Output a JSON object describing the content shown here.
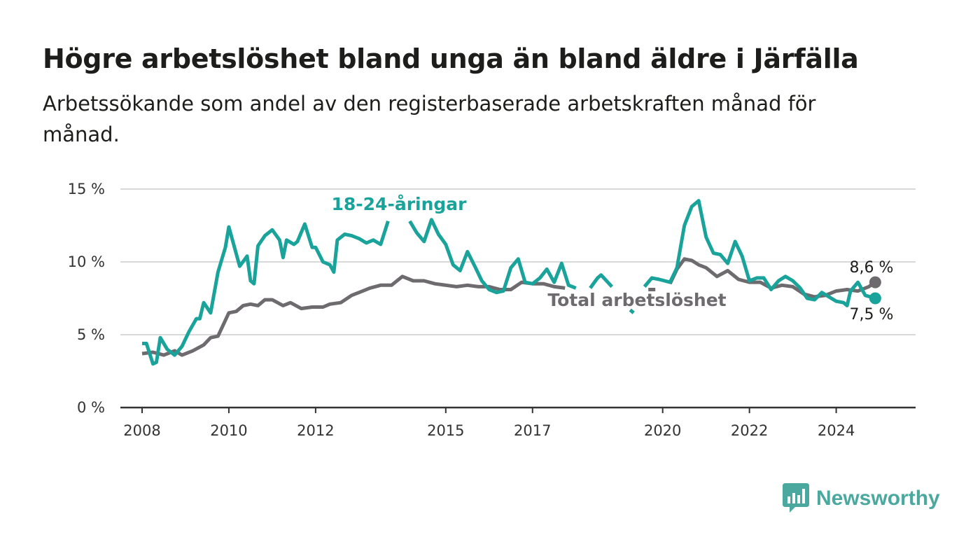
{
  "title": "Högre arbetslöshet bland unga än bland äldre i Järfälla",
  "subtitle": "Arbetssökande som andel av den registerbaserade arbetskraften månad för månad.",
  "brand": "Newsworthy",
  "colors": {
    "youth": "#1aa39a",
    "total": "#6e6b6f",
    "grid": "#d9d9d9",
    "axis": "#333333",
    "brand": "#4aa89e"
  },
  "chart_data": {
    "type": "line",
    "ylim": [
      0,
      15
    ],
    "xlim": [
      2007.5,
      2025.83
    ],
    "grid": true,
    "y_ticks": [
      {
        "value": 0,
        "label": "0 %"
      },
      {
        "value": 5,
        "label": "5 %"
      },
      {
        "value": 10,
        "label": "10 %"
      },
      {
        "value": 15,
        "label": "15 %"
      }
    ],
    "x_ticks": [
      {
        "value": 2008.0,
        "label": "2008"
      },
      {
        "value": 2010.0,
        "label": "2010"
      },
      {
        "value": 2012.0,
        "label": "2012"
      },
      {
        "value": 2015.0,
        "label": "2015"
      },
      {
        "value": 2017.0,
        "label": "2017"
      },
      {
        "value": 2020.0,
        "label": "2020"
      },
      {
        "value": 2022.0,
        "label": "2022"
      },
      {
        "value": 2024.0,
        "label": "2024"
      }
    ],
    "series": [
      {
        "name": "Total arbetslöshet",
        "end_label": "8,6 %",
        "points": [
          [
            2008.0,
            3.7
          ],
          [
            2008.25,
            3.8
          ],
          [
            2008.5,
            3.6
          ],
          [
            2008.75,
            3.9
          ],
          [
            2008.92,
            3.6
          ],
          [
            2009.17,
            3.9
          ],
          [
            2009.42,
            4.3
          ],
          [
            2009.58,
            4.8
          ],
          [
            2009.75,
            4.9
          ],
          [
            2010.0,
            6.5
          ],
          [
            2010.17,
            6.6
          ],
          [
            2010.33,
            7.0
          ],
          [
            2010.5,
            7.1
          ],
          [
            2010.67,
            7.0
          ],
          [
            2010.83,
            7.4
          ],
          [
            2011.0,
            7.4
          ],
          [
            2011.25,
            7.0
          ],
          [
            2011.42,
            7.2
          ],
          [
            2011.67,
            6.8
          ],
          [
            2011.92,
            6.9
          ],
          [
            2012.17,
            6.9
          ],
          [
            2012.33,
            7.1
          ],
          [
            2012.58,
            7.2
          ],
          [
            2012.83,
            7.7
          ],
          [
            2013.0,
            7.9
          ],
          [
            2013.25,
            8.2
          ],
          [
            2013.5,
            8.4
          ],
          [
            2013.75,
            8.4
          ],
          [
            2014.0,
            9.0
          ],
          [
            2014.25,
            8.7
          ],
          [
            2014.5,
            8.7
          ],
          [
            2014.75,
            8.5
          ],
          [
            2015.0,
            8.4
          ],
          [
            2015.25,
            8.3
          ],
          [
            2015.5,
            8.4
          ],
          [
            2015.75,
            8.3
          ],
          [
            2016.0,
            8.3
          ],
          [
            2016.25,
            8.1
          ],
          [
            2016.5,
            8.1
          ],
          [
            2016.75,
            8.6
          ],
          [
            2017.0,
            8.5
          ],
          [
            2017.25,
            8.5
          ],
          [
            2017.5,
            8.3
          ],
          [
            2017.75,
            8.2
          ],
          [
            2017.83,
            null
          ],
          [
            2019.67,
            8.1
          ],
          [
            2019.83,
            8.1
          ],
          [
            2019.92,
            null
          ],
          [
            2020.17,
            8.5
          ],
          [
            2020.33,
            9.5
          ],
          [
            2020.5,
            10.2
          ],
          [
            2020.67,
            10.1
          ],
          [
            2020.83,
            9.8
          ],
          [
            2021.0,
            9.6
          ],
          [
            2021.25,
            9.0
          ],
          [
            2021.5,
            9.4
          ],
          [
            2021.75,
            8.8
          ],
          [
            2022.0,
            8.6
          ],
          [
            2022.25,
            8.6
          ],
          [
            2022.5,
            8.2
          ],
          [
            2022.75,
            8.4
          ],
          [
            2023.0,
            8.3
          ],
          [
            2023.25,
            7.8
          ],
          [
            2023.5,
            7.6
          ],
          [
            2023.75,
            7.7
          ],
          [
            2024.0,
            8.0
          ],
          [
            2024.25,
            8.1
          ],
          [
            2024.5,
            8.0
          ],
          [
            2024.75,
            8.3
          ],
          [
            2024.9,
            8.6
          ]
        ]
      },
      {
        "name": "18-24-åringar",
        "end_label": "7,5 %",
        "points": [
          [
            2008.0,
            4.4
          ],
          [
            2008.1,
            4.4
          ],
          [
            2008.25,
            3.0
          ],
          [
            2008.33,
            3.1
          ],
          [
            2008.42,
            4.8
          ],
          [
            2008.58,
            4.0
          ],
          [
            2008.75,
            3.6
          ],
          [
            2008.92,
            4.2
          ],
          [
            2009.08,
            5.2
          ],
          [
            2009.25,
            6.1
          ],
          [
            2009.33,
            6.1
          ],
          [
            2009.42,
            7.2
          ],
          [
            2009.58,
            6.5
          ],
          [
            2009.75,
            9.3
          ],
          [
            2009.92,
            11.0
          ],
          [
            2010.0,
            12.4
          ],
          [
            2010.25,
            9.7
          ],
          [
            2010.42,
            10.4
          ],
          [
            2010.5,
            8.7
          ],
          [
            2010.58,
            8.5
          ],
          [
            2010.67,
            11.1
          ],
          [
            2010.83,
            11.8
          ],
          [
            2011.0,
            12.2
          ],
          [
            2011.17,
            11.5
          ],
          [
            2011.25,
            10.3
          ],
          [
            2011.33,
            11.5
          ],
          [
            2011.5,
            11.2
          ],
          [
            2011.58,
            11.4
          ],
          [
            2011.75,
            12.6
          ],
          [
            2011.92,
            11.0
          ],
          [
            2012.0,
            11.0
          ],
          [
            2012.17,
            10.0
          ],
          [
            2012.33,
            9.8
          ],
          [
            2012.42,
            9.3
          ],
          [
            2012.5,
            11.5
          ],
          [
            2012.67,
            11.9
          ],
          [
            2012.83,
            11.8
          ],
          [
            2013.0,
            11.6
          ],
          [
            2013.17,
            11.3
          ],
          [
            2013.33,
            11.5
          ],
          [
            2013.5,
            11.2
          ],
          [
            2013.67,
            12.8
          ],
          [
            2013.83,
            null
          ],
          [
            2014.17,
            12.8
          ],
          [
            2014.33,
            12.0
          ],
          [
            2014.5,
            11.4
          ],
          [
            2014.67,
            12.9
          ],
          [
            2014.83,
            11.9
          ],
          [
            2015.0,
            11.2
          ],
          [
            2015.17,
            9.8
          ],
          [
            2015.33,
            9.4
          ],
          [
            2015.5,
            10.7
          ],
          [
            2015.67,
            9.7
          ],
          [
            2015.83,
            8.7
          ],
          [
            2016.0,
            8.1
          ],
          [
            2016.17,
            7.9
          ],
          [
            2016.33,
            8.0
          ],
          [
            2016.5,
            9.6
          ],
          [
            2016.67,
            10.2
          ],
          [
            2016.83,
            8.6
          ],
          [
            2017.0,
            8.5
          ],
          [
            2017.17,
            8.9
          ],
          [
            2017.33,
            9.5
          ],
          [
            2017.5,
            8.6
          ],
          [
            2017.67,
            9.9
          ],
          [
            2017.83,
            8.4
          ],
          [
            2018.0,
            8.2
          ],
          [
            2018.08,
            null
          ],
          [
            2018.33,
            8.2
          ],
          [
            2018.5,
            8.9
          ],
          [
            2018.58,
            9.1
          ],
          [
            2018.83,
            8.3
          ],
          [
            2018.92,
            null
          ],
          [
            2019.25,
            6.7
          ],
          [
            2019.33,
            6.5
          ],
          [
            2019.42,
            null
          ],
          [
            2019.58,
            8.3
          ],
          [
            2019.75,
            8.9
          ],
          [
            2019.92,
            8.8
          ],
          [
            2020.17,
            8.6
          ],
          [
            2020.33,
            9.6
          ],
          [
            2020.5,
            12.5
          ],
          [
            2020.67,
            13.8
          ],
          [
            2020.83,
            14.2
          ],
          [
            2021.0,
            11.7
          ],
          [
            2021.17,
            10.6
          ],
          [
            2021.33,
            10.5
          ],
          [
            2021.5,
            9.9
          ],
          [
            2021.67,
            11.4
          ],
          [
            2021.83,
            10.4
          ],
          [
            2022.0,
            8.7
          ],
          [
            2022.17,
            8.9
          ],
          [
            2022.33,
            8.9
          ],
          [
            2022.5,
            8.1
          ],
          [
            2022.67,
            8.7
          ],
          [
            2022.83,
            9.0
          ],
          [
            2023.0,
            8.7
          ],
          [
            2023.17,
            8.2
          ],
          [
            2023.33,
            7.5
          ],
          [
            2023.5,
            7.4
          ],
          [
            2023.67,
            7.9
          ],
          [
            2023.83,
            7.6
          ],
          [
            2024.0,
            7.3
          ],
          [
            2024.17,
            7.2
          ],
          [
            2024.25,
            7.0
          ],
          [
            2024.33,
            8.0
          ],
          [
            2024.5,
            8.6
          ],
          [
            2024.67,
            7.7
          ],
          [
            2024.9,
            7.5
          ]
        ]
      }
    ]
  }
}
